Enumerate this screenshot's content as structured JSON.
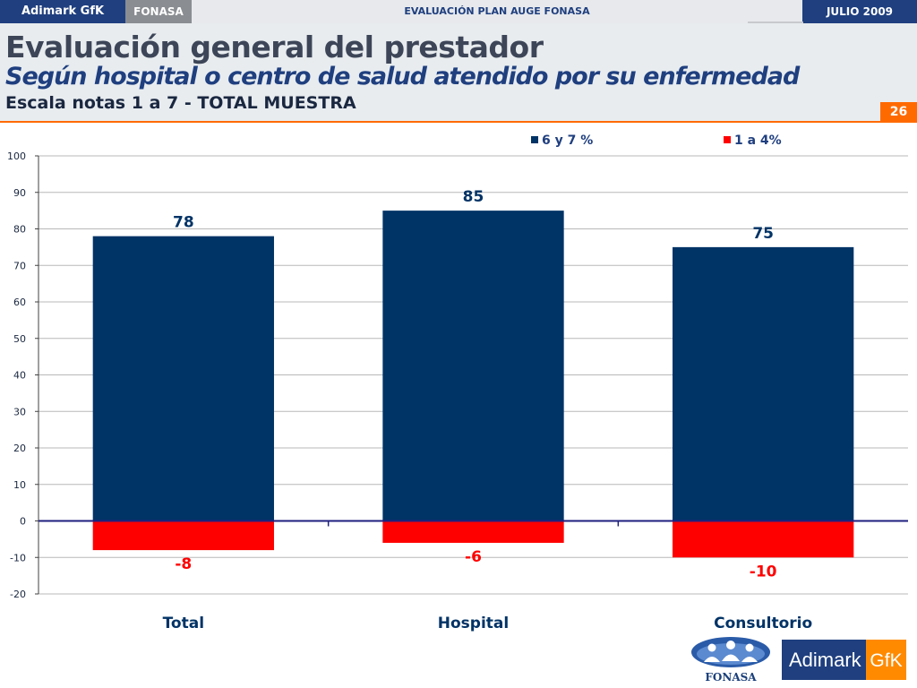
{
  "topbar": {
    "brand": "Adimark GfK",
    "client": "FONASA",
    "report_title": "EVALUACIÓN PLAN AUGE FONASA",
    "date": "JULIO 2009"
  },
  "header": {
    "title": "Evaluación general del prestador",
    "subtitle": "Según hospital o centro de salud atendido por su enfermedad",
    "scale": "Escala notas 1 a 7 - TOTAL MUESTRA",
    "page_number": "26"
  },
  "colors": {
    "positive": "#003366",
    "negative": "#ff0000",
    "grid": "#b8b8b8",
    "axis": "#1f1f7f"
  },
  "chart_data": {
    "type": "bar",
    "title": "",
    "xlabel": "",
    "ylabel": "",
    "categories": [
      "Total",
      "Hospital",
      "Consultorio"
    ],
    "series": [
      {
        "name": "6 y 7 %",
        "values": [
          78,
          85,
          75
        ],
        "labels": [
          "78",
          "85",
          "75"
        ],
        "color": "#003366"
      },
      {
        "name": "1 a 4%",
        "values": [
          -8,
          -6,
          -10
        ],
        "labels": [
          "-8",
          "-6",
          "-10"
        ],
        "color": "#ff0000"
      }
    ],
    "ylim": [
      -20,
      100
    ],
    "yticks": [
      100,
      90,
      80,
      70,
      60,
      50,
      40,
      30,
      20,
      10,
      0,
      -10,
      -20
    ],
    "grid": true,
    "legend": "top"
  },
  "logos": {
    "fonasa_text": "FONASA",
    "gfk_brand": "Adimark",
    "gfk_tag": "GfK"
  }
}
